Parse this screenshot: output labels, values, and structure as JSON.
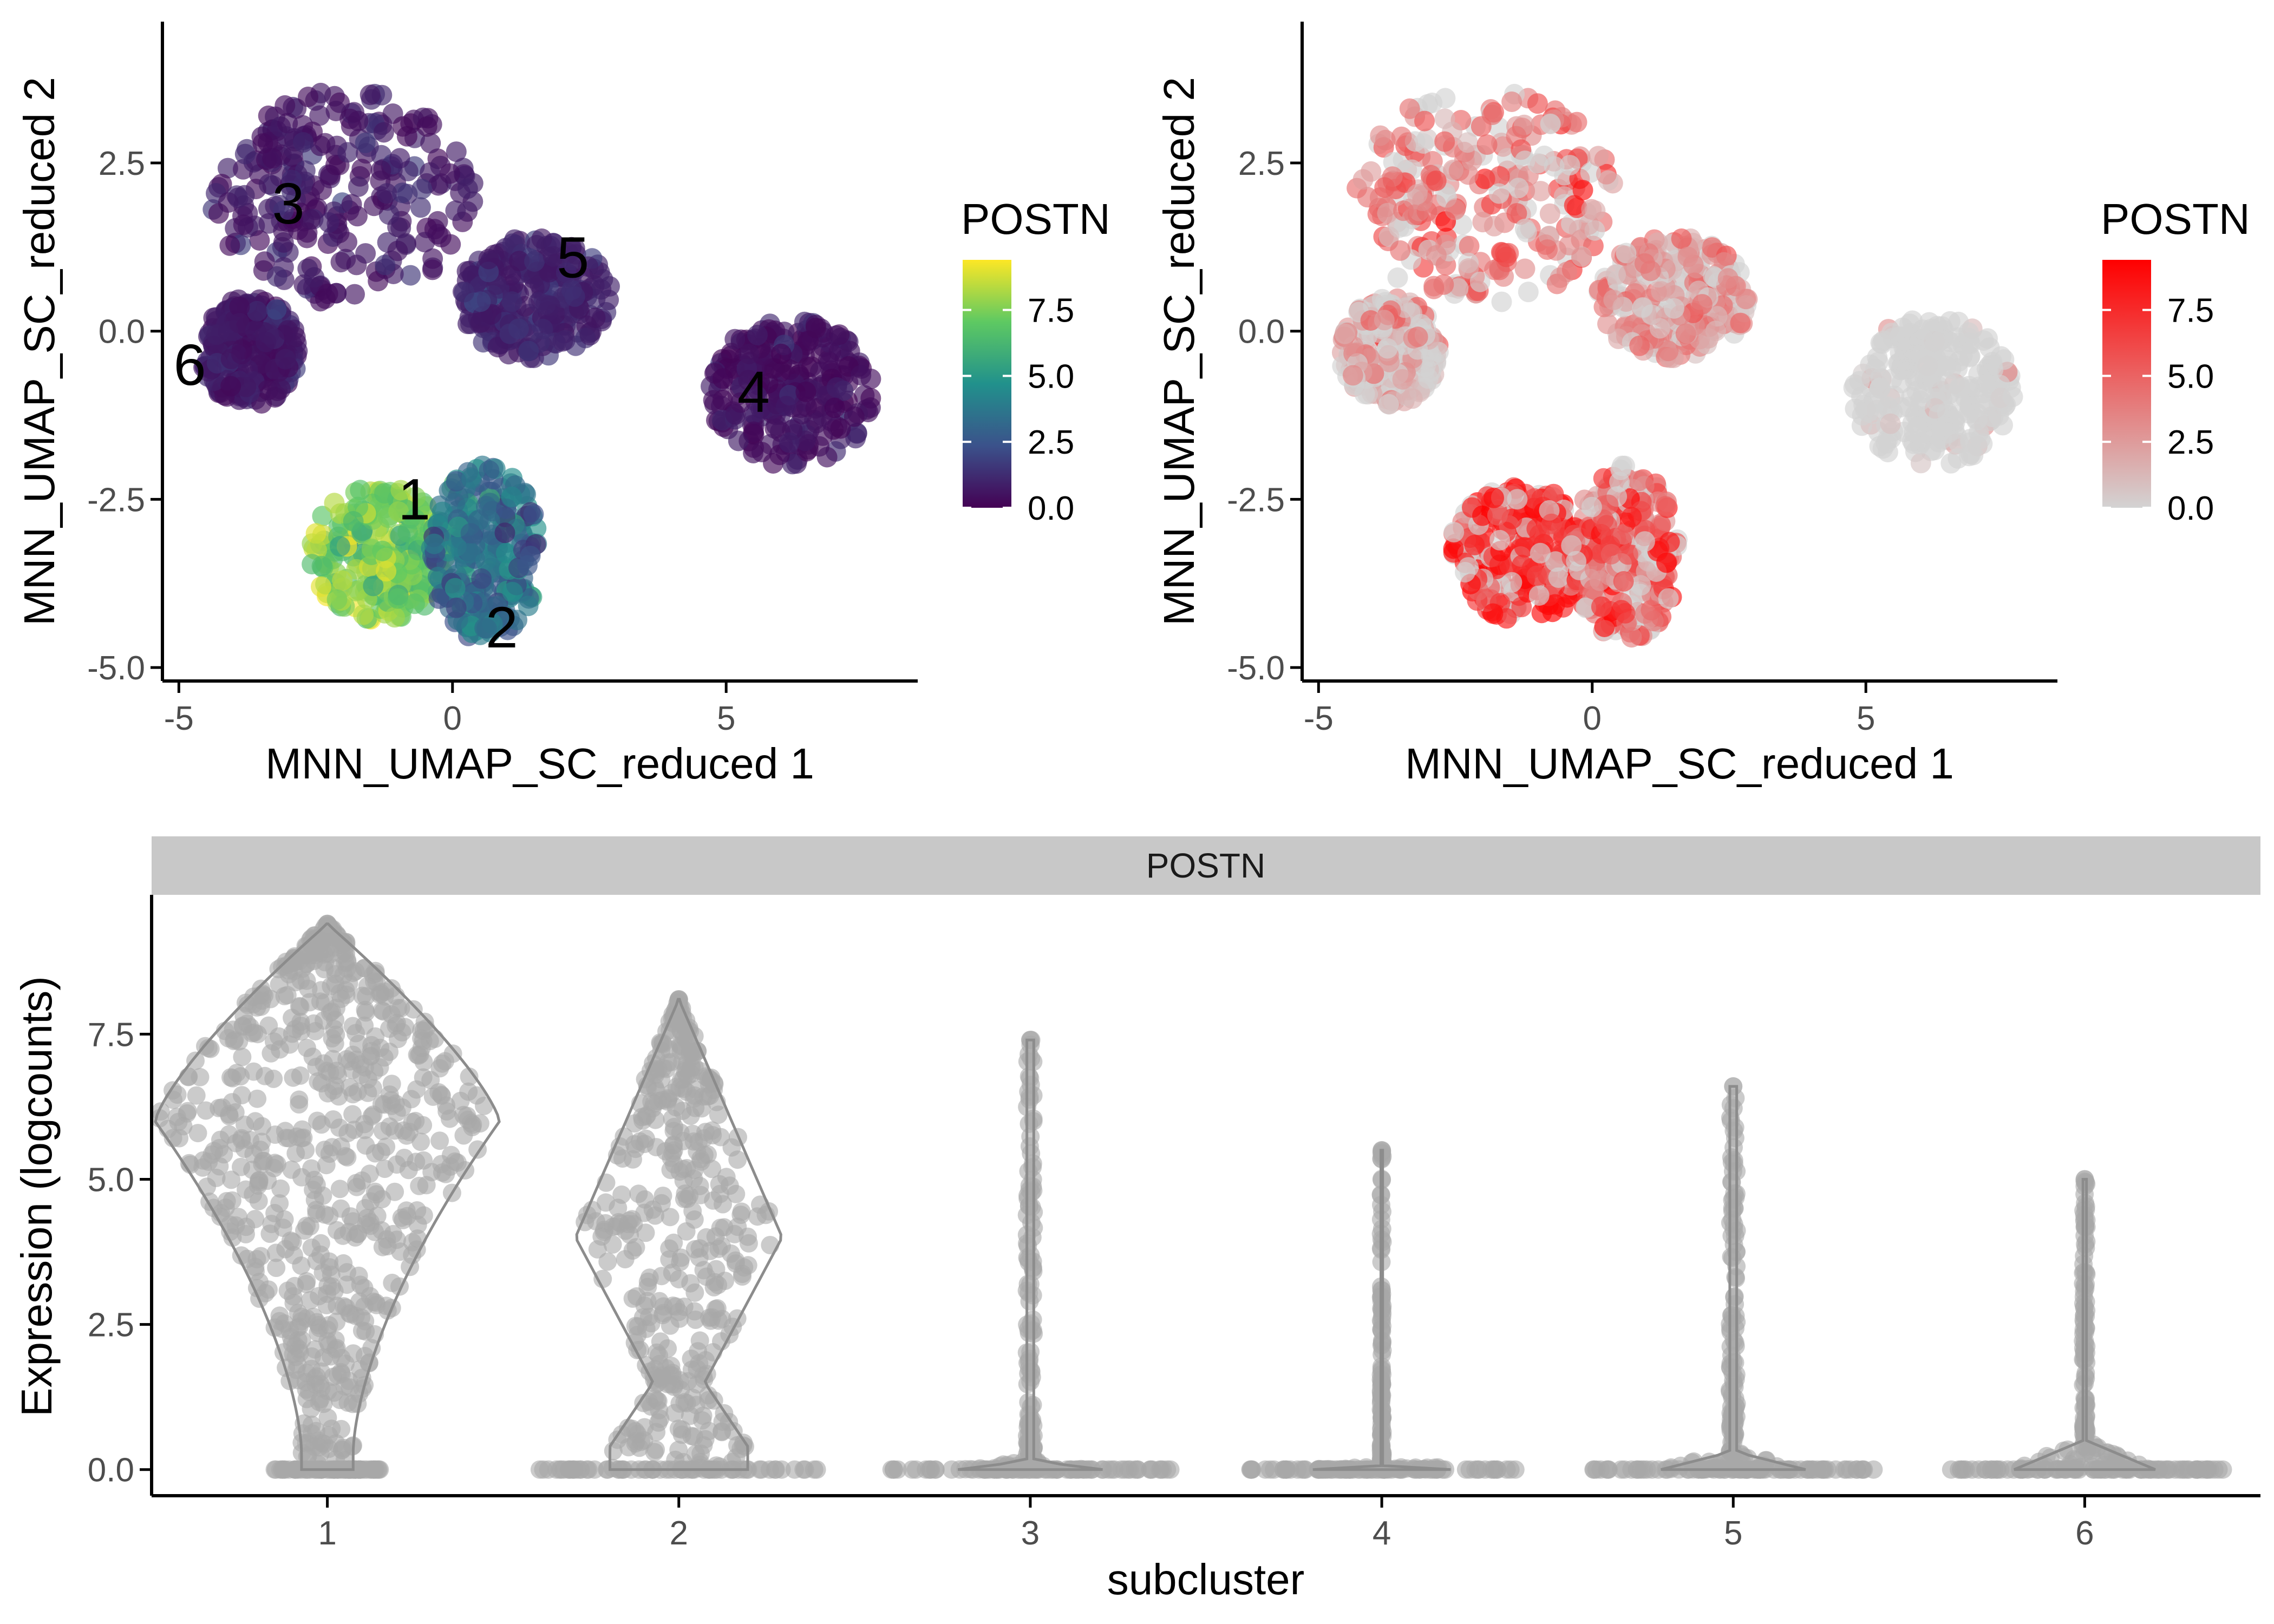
{
  "chart_data": [
    {
      "type": "scatter",
      "panel": "umap-viridis",
      "xlabel": "MNN_UMAP_SC_reduced 1",
      "ylabel": "MNN_UMAP_SC_reduced 2",
      "xlim": [
        -5.3,
        8.5
      ],
      "ylim": [
        -5.2,
        4.6
      ],
      "x_ticks": [
        -5,
        0,
        5
      ],
      "y_ticks": [
        -5.0,
        -2.5,
        0.0,
        2.5
      ],
      "legend_title": "POSTN",
      "legend_ticks": [
        0.0,
        2.5,
        5.0,
        7.5
      ],
      "legend_range": [
        0,
        9.4
      ],
      "colorscale": [
        "#440154",
        "#3b528b",
        "#21918c",
        "#5ec962",
        "#fde725"
      ],
      "cluster_labels": [
        {
          "label": "3",
          "x": -3.0,
          "y": 1.6
        },
        {
          "label": "5",
          "x": 2.2,
          "y": 0.8
        },
        {
          "label": "6",
          "x": -4.8,
          "y": -0.8
        },
        {
          "label": "4",
          "x": 5.5,
          "y": -1.2
        },
        {
          "label": "1",
          "x": -0.7,
          "y": -2.8
        },
        {
          "label": "2",
          "x": 0.9,
          "y": -4.7
        }
      ],
      "clusters": [
        {
          "id": "3",
          "cx": -2.0,
          "cy": 2.0,
          "rx": 2.4,
          "ry": 1.6,
          "expr": 0.2
        },
        {
          "id": "5",
          "cx": 1.5,
          "cy": 0.5,
          "rx": 1.4,
          "ry": 0.9,
          "expr": 0.5
        },
        {
          "id": "6",
          "cx": -3.7,
          "cy": -0.3,
          "rx": 0.9,
          "ry": 0.8,
          "expr": 0.2
        },
        {
          "id": "4",
          "cx": 6.2,
          "cy": -0.9,
          "rx": 1.5,
          "ry": 1.1,
          "expr": 0.05
        },
        {
          "id": "1",
          "cx": -1.3,
          "cy": -3.3,
          "rx": 1.3,
          "ry": 1.0,
          "expr": 7.3
        },
        {
          "id": "2",
          "cx": 0.6,
          "cy": -3.3,
          "rx": 1.0,
          "ry": 1.3,
          "expr": 3.5
        }
      ]
    },
    {
      "type": "scatter",
      "panel": "umap-red",
      "xlabel": "MNN_UMAP_SC_reduced 1",
      "ylabel": "MNN_UMAP_SC_reduced 2",
      "xlim": [
        -5.3,
        8.5
      ],
      "ylim": [
        -5.2,
        4.6
      ],
      "x_ticks": [
        -5,
        0,
        5
      ],
      "y_ticks": [
        -5.0,
        -2.5,
        0.0,
        2.5
      ],
      "legend_title": "POSTN",
      "legend_ticks": [
        0.0,
        2.5,
        5.0,
        7.5
      ],
      "legend_range": [
        0,
        9.4
      ],
      "colorscale": [
        "#d3d3d3",
        "#ff0000"
      ],
      "clusters": [
        {
          "id": "3",
          "cx": -2.0,
          "cy": 2.0,
          "rx": 2.4,
          "ry": 1.6,
          "expr": 4.0
        },
        {
          "id": "5",
          "cx": 1.5,
          "cy": 0.5,
          "rx": 1.4,
          "ry": 0.9,
          "expr": 3.0
        },
        {
          "id": "6",
          "cx": -3.7,
          "cy": -0.3,
          "rx": 0.9,
          "ry": 0.8,
          "expr": 2.0
        },
        {
          "id": "4",
          "cx": 6.2,
          "cy": -0.9,
          "rx": 1.5,
          "ry": 1.1,
          "expr": 0.5
        },
        {
          "id": "1",
          "cx": -1.3,
          "cy": -3.3,
          "rx": 1.3,
          "ry": 1.0,
          "expr": 7.5
        },
        {
          "id": "2",
          "cx": 0.6,
          "cy": -3.3,
          "rx": 1.0,
          "ry": 1.3,
          "expr": 5.5
        }
      ]
    },
    {
      "type": "violin",
      "panel": "violin-postn",
      "strip_label": "POSTN",
      "xlabel": "subcluster",
      "ylabel": "Expression (logcounts)",
      "categories": [
        "1",
        "2",
        "3",
        "4",
        "5",
        "6"
      ],
      "ylim": [
        -0.45,
        9.9
      ],
      "y_ticks": [
        0.0,
        2.5,
        5.0,
        7.5
      ],
      "point_color": "#a9a9a9",
      "max_values": [
        9.4,
        8.1,
        7.4,
        5.5,
        6.6,
        5.0
      ],
      "base_halfwidth": [
        0.15,
        0.4,
        0.4,
        0.4,
        0.4,
        0.4
      ]
    }
  ]
}
